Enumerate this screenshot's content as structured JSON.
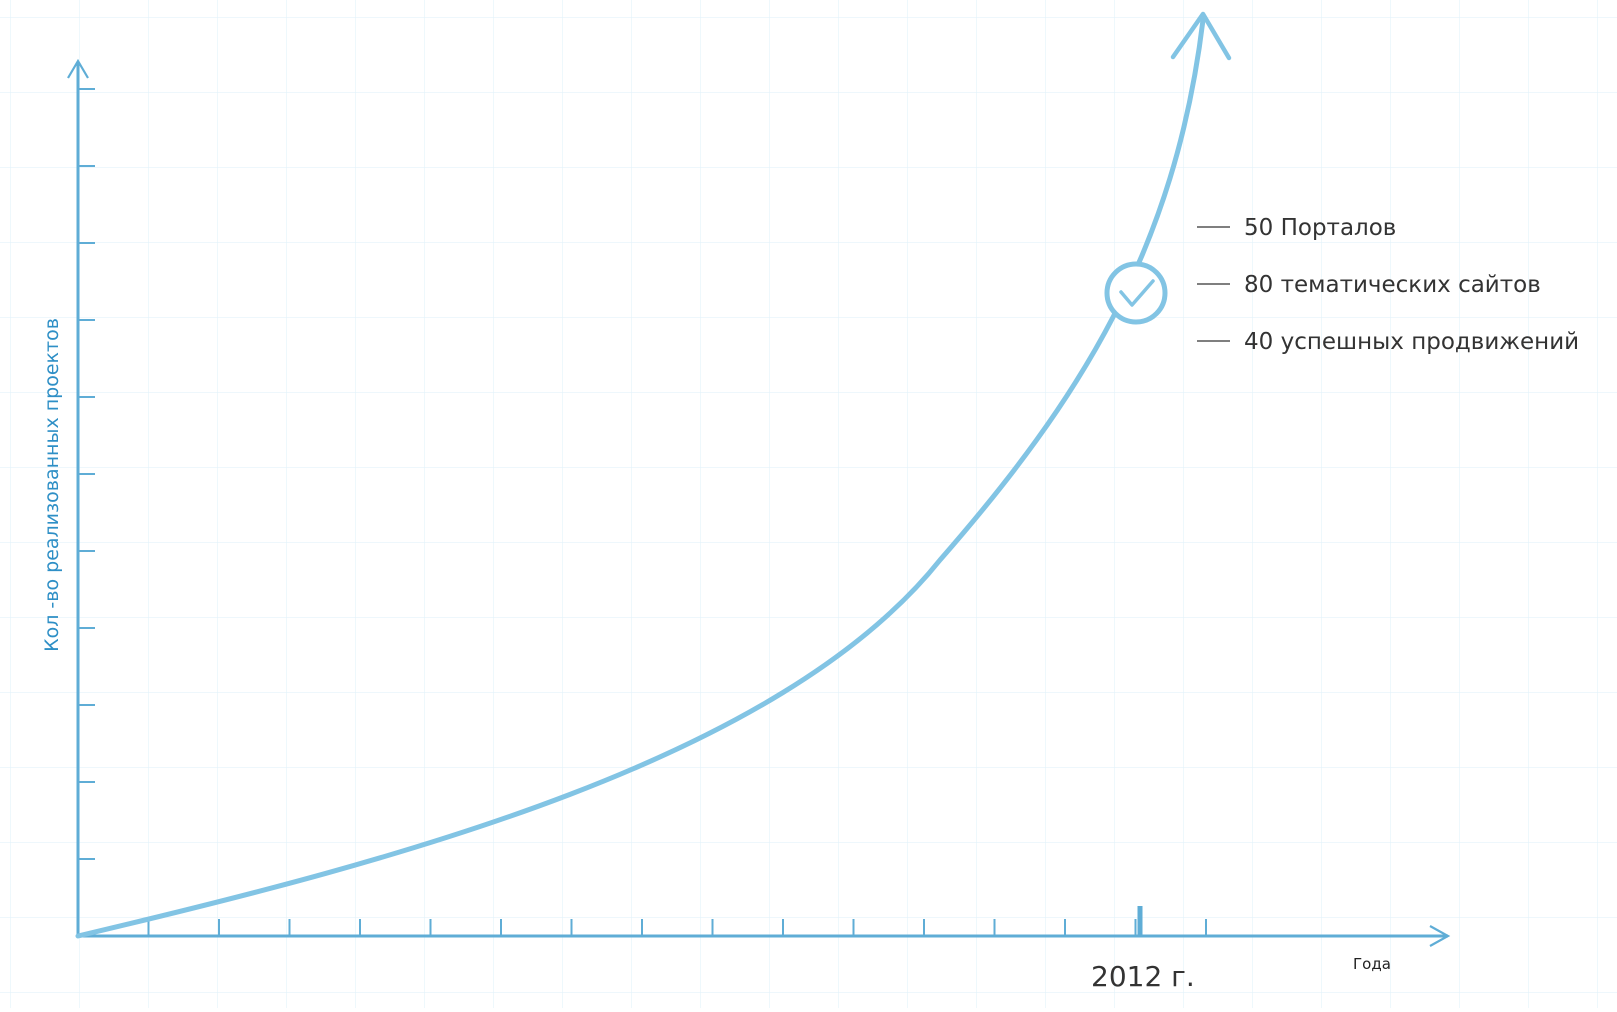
{
  "colors": {
    "axis": "#5FADD6",
    "curve": "#82C4E4",
    "grid": "#E3F2FA",
    "text_dark": "#333333",
    "text_label": "#2E8FC6"
  },
  "chart_data": {
    "type": "line",
    "title": "",
    "ylabel": "Кол -во реализованных проектов",
    "xlabel": "Года",
    "grid": true,
    "highlight_label": "2012 г.",
    "highlight_icon": "check-circle-icon",
    "annotations": [
      "50  Порталов",
      "80 тематических сайтов",
      "40 успешных продвижений"
    ],
    "x_ticks_count": 16,
    "y_ticks_count": 11
  }
}
